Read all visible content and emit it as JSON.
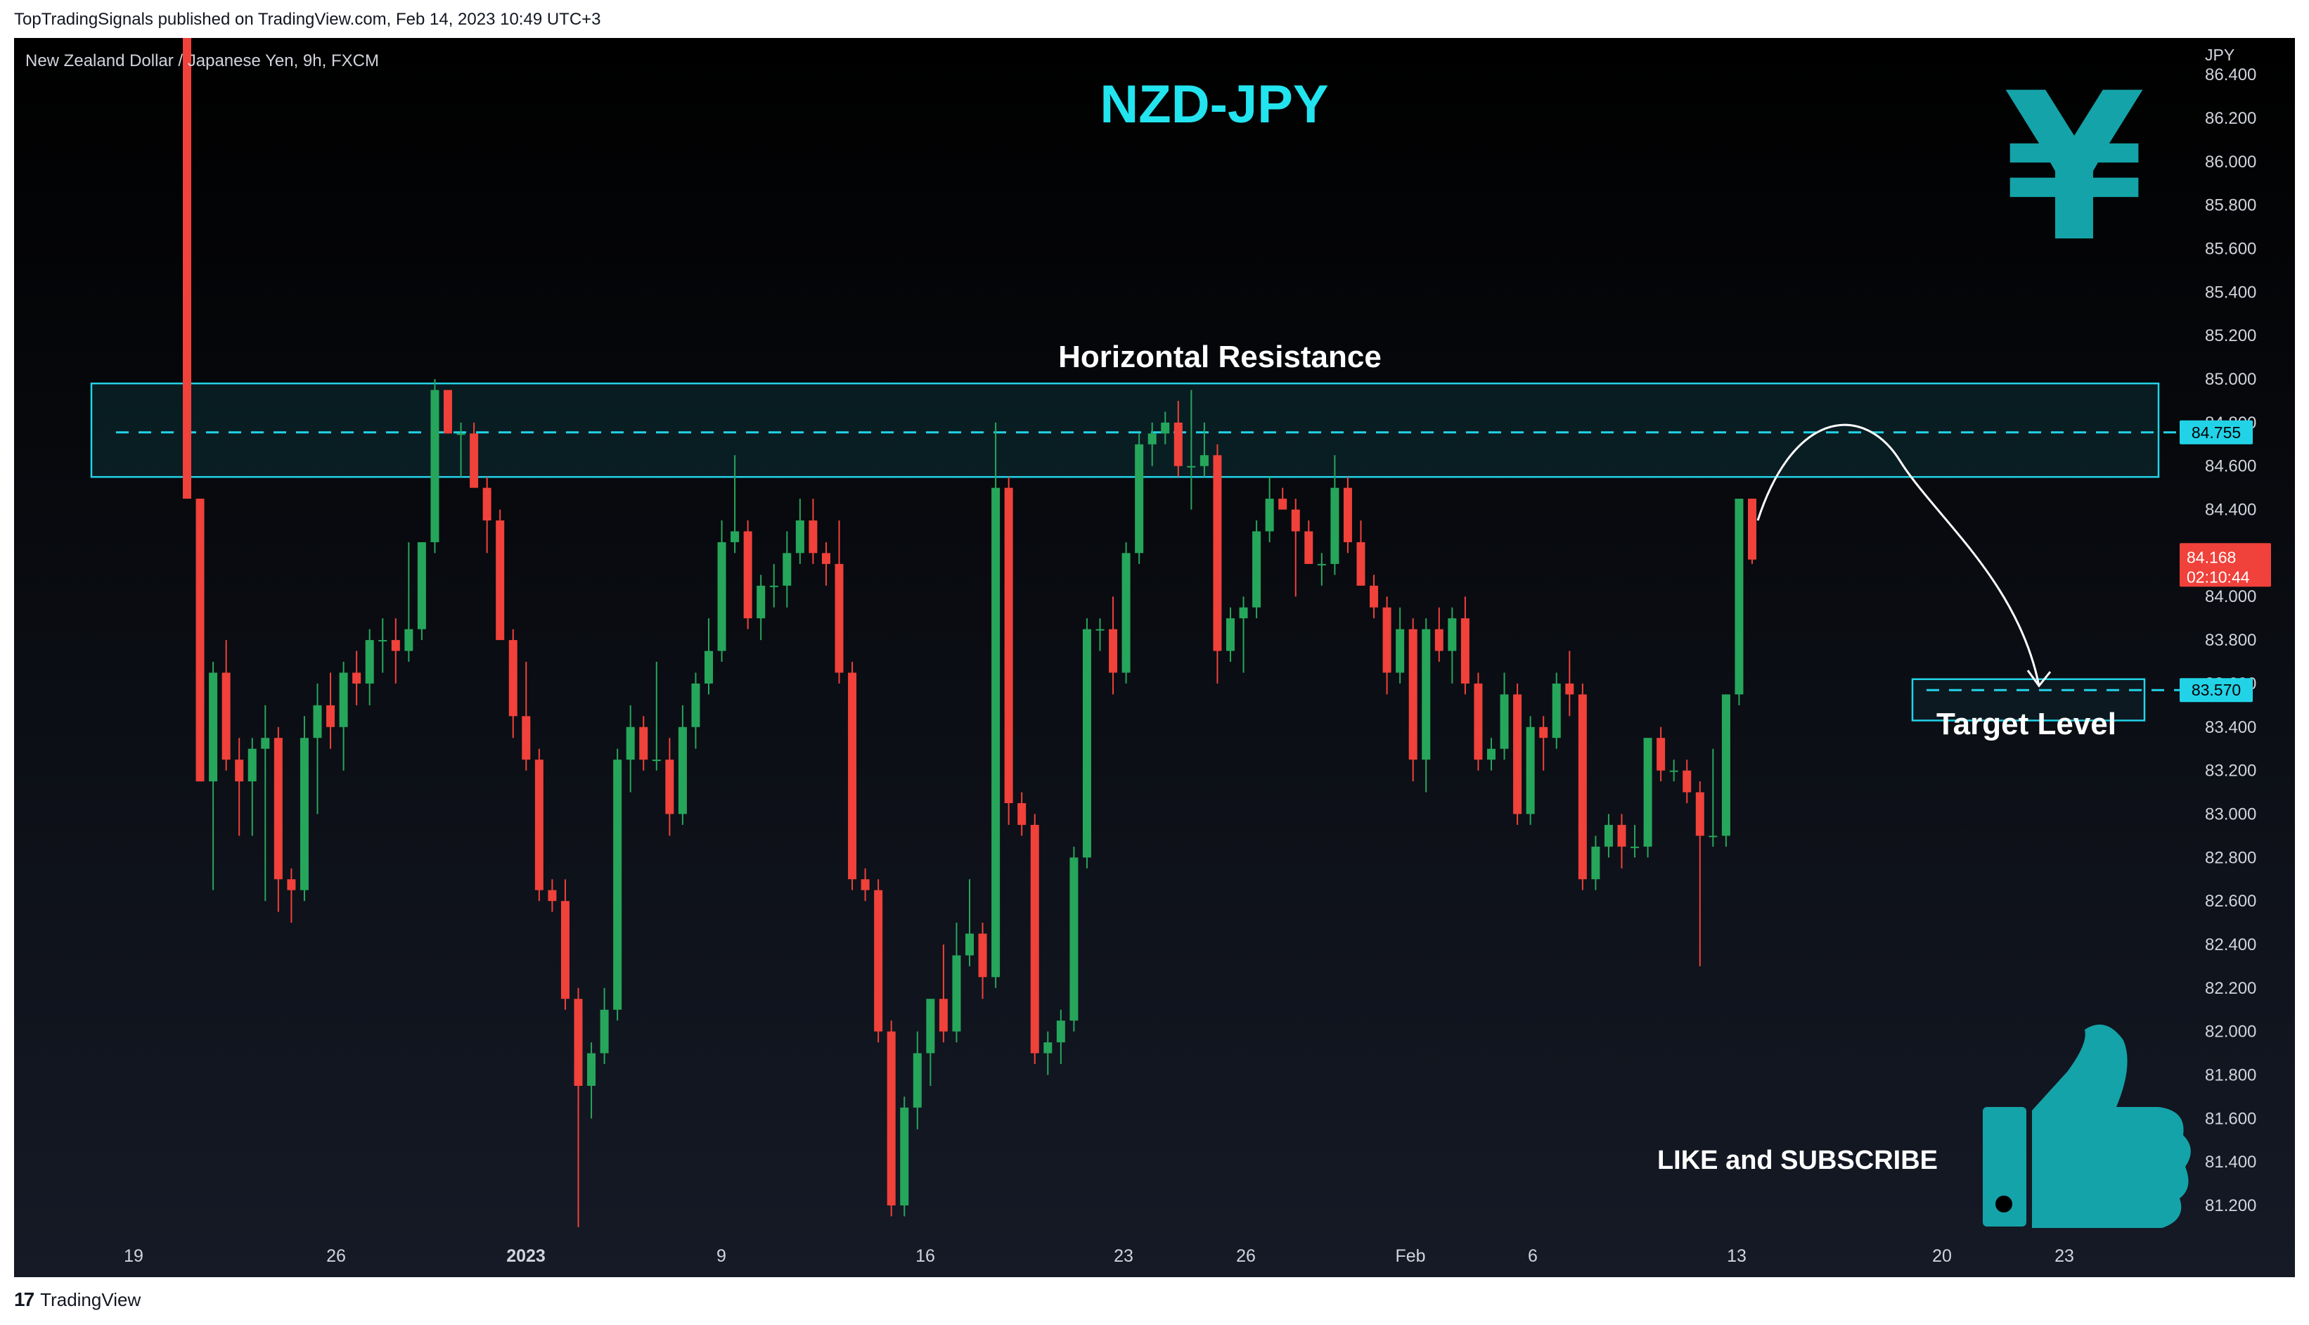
{
  "header": {
    "published_text": "TopTradingSignals published on TradingView.com, Feb 14, 2023 10:49 UTC+3"
  },
  "footer": {
    "brand": "TradingView",
    "logo_glyph": "17"
  },
  "chart": {
    "symbol_info": "New Zealand Dollar / Japanese Yen, 9h, FXCM",
    "title": "NZD-JPY",
    "currency_label": "JPY",
    "resistance_label": "Horizontal Resistance",
    "target_label": "Target Level",
    "cta_label": "LIKE and SUBSCRIBE",
    "resistance_badge": "84.755",
    "target_badge": "83.570",
    "last_price_badge": "84.168",
    "countdown_badge": "02:10:44",
    "yen_symbol": "¥",
    "colors": {
      "up": "#26a65b",
      "down": "#f0413a",
      "accent": "#22d3e8",
      "background_top": "#000000",
      "background_bottom": "#151a26"
    }
  },
  "chart_data": {
    "type": "candlestick",
    "title": "NZD-JPY",
    "ylabel": "JPY",
    "ylim": [
      81.05,
      86.4
    ],
    "y_ticks": [
      "86.400",
      "86.200",
      "86.000",
      "85.800",
      "85.600",
      "85.400",
      "85.200",
      "85.000",
      "84.800",
      "84.600",
      "84.400",
      "84.000",
      "83.800",
      "83.600",
      "83.400",
      "83.200",
      "83.000",
      "82.800",
      "82.600",
      "82.400",
      "82.200",
      "82.000",
      "81.800",
      "81.600",
      "81.400",
      "81.200"
    ],
    "x_ticks": [
      "19",
      "26",
      "2023",
      "9",
      "16",
      "23",
      "26",
      "Feb",
      "6",
      "13",
      "20",
      "23"
    ],
    "resistance_zone": [
      84.55,
      84.98
    ],
    "resistance_level": 84.755,
    "target_level": 83.57,
    "target_zone": [
      83.43,
      83.62
    ],
    "last_price": 84.168,
    "candles": [
      {
        "o": 86.8,
        "h": 86.8,
        "l": 84.45,
        "c": 84.45
      },
      {
        "o": 84.45,
        "h": 84.45,
        "l": 83.15,
        "c": 83.15
      },
      {
        "o": 83.15,
        "h": 83.7,
        "l": 82.65,
        "c": 83.65
      },
      {
        "o": 83.65,
        "h": 83.8,
        "l": 83.2,
        "c": 83.25
      },
      {
        "o": 83.25,
        "h": 83.35,
        "l": 82.9,
        "c": 83.15
      },
      {
        "o": 83.15,
        "h": 83.35,
        "l": 82.9,
        "c": 83.3
      },
      {
        "o": 83.3,
        "h": 83.5,
        "l": 82.6,
        "c": 83.35
      },
      {
        "o": 83.35,
        "h": 83.4,
        "l": 82.55,
        "c": 82.7
      },
      {
        "o": 82.7,
        "h": 82.75,
        "l": 82.5,
        "c": 82.65
      },
      {
        "o": 82.65,
        "h": 83.45,
        "l": 82.6,
        "c": 83.35
      },
      {
        "o": 83.35,
        "h": 83.6,
        "l": 83.0,
        "c": 83.5
      },
      {
        "o": 83.5,
        "h": 83.65,
        "l": 83.3,
        "c": 83.4
      },
      {
        "o": 83.4,
        "h": 83.7,
        "l": 83.2,
        "c": 83.65
      },
      {
        "o": 83.65,
        "h": 83.75,
        "l": 83.5,
        "c": 83.6
      },
      {
        "o": 83.6,
        "h": 83.85,
        "l": 83.5,
        "c": 83.8
      },
      {
        "o": 83.8,
        "h": 83.9,
        "l": 83.65,
        "c": 83.8
      },
      {
        "o": 83.8,
        "h": 83.9,
        "l": 83.6,
        "c": 83.75
      },
      {
        "o": 83.75,
        "h": 84.25,
        "l": 83.7,
        "c": 83.85
      },
      {
        "o": 83.85,
        "h": 84.25,
        "l": 83.8,
        "c": 84.25
      },
      {
        "o": 84.25,
        "h": 85.0,
        "l": 84.2,
        "c": 84.95
      },
      {
        "o": 84.95,
        "h": 84.95,
        "l": 84.75,
        "c": 84.75
      },
      {
        "o": 84.75,
        "h": 84.8,
        "l": 84.55,
        "c": 84.75
      },
      {
        "o": 84.75,
        "h": 84.8,
        "l": 84.5,
        "c": 84.5
      },
      {
        "o": 84.5,
        "h": 84.55,
        "l": 84.2,
        "c": 84.35
      },
      {
        "o": 84.35,
        "h": 84.4,
        "l": 83.8,
        "c": 83.8
      },
      {
        "o": 83.8,
        "h": 83.85,
        "l": 83.35,
        "c": 83.45
      },
      {
        "o": 83.45,
        "h": 83.7,
        "l": 83.2,
        "c": 83.25
      },
      {
        "o": 83.25,
        "h": 83.3,
        "l": 82.6,
        "c": 82.65
      },
      {
        "o": 82.65,
        "h": 82.7,
        "l": 82.55,
        "c": 82.6
      },
      {
        "o": 82.6,
        "h": 82.7,
        "l": 82.1,
        "c": 82.15
      },
      {
        "o": 82.15,
        "h": 82.2,
        "l": 81.1,
        "c": 81.75
      },
      {
        "o": 81.75,
        "h": 81.95,
        "l": 81.6,
        "c": 81.9
      },
      {
        "o": 81.9,
        "h": 82.2,
        "l": 81.85,
        "c": 82.1
      },
      {
        "o": 82.1,
        "h": 83.3,
        "l": 82.05,
        "c": 83.25
      },
      {
        "o": 83.25,
        "h": 83.5,
        "l": 83.1,
        "c": 83.4
      },
      {
        "o": 83.4,
        "h": 83.45,
        "l": 83.2,
        "c": 83.25
      },
      {
        "o": 83.25,
        "h": 83.7,
        "l": 83.2,
        "c": 83.25
      },
      {
        "o": 83.25,
        "h": 83.35,
        "l": 82.9,
        "c": 83.0
      },
      {
        "o": 83.0,
        "h": 83.5,
        "l": 82.95,
        "c": 83.4
      },
      {
        "o": 83.4,
        "h": 83.65,
        "l": 83.3,
        "c": 83.6
      },
      {
        "o": 83.6,
        "h": 83.9,
        "l": 83.55,
        "c": 83.75
      },
      {
        "o": 83.75,
        "h": 84.35,
        "l": 83.7,
        "c": 84.25
      },
      {
        "o": 84.25,
        "h": 84.65,
        "l": 84.2,
        "c": 84.3
      },
      {
        "o": 84.3,
        "h": 84.35,
        "l": 83.85,
        "c": 83.9
      },
      {
        "o": 83.9,
        "h": 84.1,
        "l": 83.8,
        "c": 84.05
      },
      {
        "o": 84.05,
        "h": 84.15,
        "l": 83.95,
        "c": 84.05
      },
      {
        "o": 84.05,
        "h": 84.3,
        "l": 83.95,
        "c": 84.2
      },
      {
        "o": 84.2,
        "h": 84.45,
        "l": 84.15,
        "c": 84.35
      },
      {
        "o": 84.35,
        "h": 84.45,
        "l": 84.15,
        "c": 84.2
      },
      {
        "o": 84.2,
        "h": 84.25,
        "l": 84.05,
        "c": 84.15
      },
      {
        "o": 84.15,
        "h": 84.35,
        "l": 83.6,
        "c": 83.65
      },
      {
        "o": 83.65,
        "h": 83.7,
        "l": 82.65,
        "c": 82.7
      },
      {
        "o": 82.7,
        "h": 82.75,
        "l": 82.6,
        "c": 82.65
      },
      {
        "o": 82.65,
        "h": 82.7,
        "l": 81.95,
        "c": 82.0
      },
      {
        "o": 82.0,
        "h": 82.05,
        "l": 81.15,
        "c": 81.2
      },
      {
        "o": 81.2,
        "h": 81.7,
        "l": 81.15,
        "c": 81.65
      },
      {
        "o": 81.65,
        "h": 82.0,
        "l": 81.55,
        "c": 81.9
      },
      {
        "o": 81.9,
        "h": 82.15,
        "l": 81.75,
        "c": 82.15
      },
      {
        "o": 82.15,
        "h": 82.4,
        "l": 81.95,
        "c": 82.0
      },
      {
        "o": 82.0,
        "h": 82.5,
        "l": 81.95,
        "c": 82.35
      },
      {
        "o": 82.35,
        "h": 82.7,
        "l": 82.3,
        "c": 82.45
      },
      {
        "o": 82.45,
        "h": 82.5,
        "l": 82.15,
        "c": 82.25
      },
      {
        "o": 82.25,
        "h": 84.8,
        "l": 82.2,
        "c": 84.5
      },
      {
        "o": 84.5,
        "h": 84.55,
        "l": 82.95,
        "c": 83.05
      },
      {
        "o": 83.05,
        "h": 83.1,
        "l": 82.9,
        "c": 82.95
      },
      {
        "o": 82.95,
        "h": 83.0,
        "l": 81.85,
        "c": 81.9
      },
      {
        "o": 81.9,
        "h": 82.0,
        "l": 81.8,
        "c": 81.95
      },
      {
        "o": 81.95,
        "h": 82.1,
        "l": 81.85,
        "c": 82.05
      },
      {
        "o": 82.05,
        "h": 82.85,
        "l": 82.0,
        "c": 82.8
      },
      {
        "o": 82.8,
        "h": 83.9,
        "l": 82.75,
        "c": 83.85
      },
      {
        "o": 83.85,
        "h": 83.9,
        "l": 83.75,
        "c": 83.85
      },
      {
        "o": 83.85,
        "h": 84.0,
        "l": 83.55,
        "c": 83.65
      },
      {
        "o": 83.65,
        "h": 84.25,
        "l": 83.6,
        "c": 84.2
      },
      {
        "o": 84.2,
        "h": 84.75,
        "l": 84.15,
        "c": 84.7
      },
      {
        "o": 84.7,
        "h": 84.8,
        "l": 84.6,
        "c": 84.75
      },
      {
        "o": 84.75,
        "h": 84.85,
        "l": 84.7,
        "c": 84.8
      },
      {
        "o": 84.8,
        "h": 84.9,
        "l": 84.55,
        "c": 84.6
      },
      {
        "o": 84.6,
        "h": 84.95,
        "l": 84.4,
        "c": 84.6
      },
      {
        "o": 84.6,
        "h": 84.8,
        "l": 84.55,
        "c": 84.65
      },
      {
        "o": 84.65,
        "h": 84.7,
        "l": 83.6,
        "c": 83.75
      },
      {
        "o": 83.75,
        "h": 83.95,
        "l": 83.7,
        "c": 83.9
      },
      {
        "o": 83.9,
        "h": 84.0,
        "l": 83.65,
        "c": 83.95
      },
      {
        "o": 83.95,
        "h": 84.35,
        "l": 83.9,
        "c": 84.3
      },
      {
        "o": 84.3,
        "h": 84.55,
        "l": 84.25,
        "c": 84.45
      },
      {
        "o": 84.45,
        "h": 84.5,
        "l": 84.4,
        "c": 84.4
      },
      {
        "o": 84.4,
        "h": 84.45,
        "l": 84.0,
        "c": 84.3
      },
      {
        "o": 84.3,
        "h": 84.35,
        "l": 84.15,
        "c": 84.15
      },
      {
        "o": 84.15,
        "h": 84.2,
        "l": 84.05,
        "c": 84.15
      },
      {
        "o": 84.15,
        "h": 84.65,
        "l": 84.1,
        "c": 84.5
      },
      {
        "o": 84.5,
        "h": 84.55,
        "l": 84.2,
        "c": 84.25
      },
      {
        "o": 84.25,
        "h": 84.35,
        "l": 84.05,
        "c": 84.05
      },
      {
        "o": 84.05,
        "h": 84.1,
        "l": 83.9,
        "c": 83.95
      },
      {
        "o": 83.95,
        "h": 84.0,
        "l": 83.55,
        "c": 83.65
      },
      {
        "o": 83.65,
        "h": 83.95,
        "l": 83.6,
        "c": 83.85
      },
      {
        "o": 83.85,
        "h": 83.9,
        "l": 83.15,
        "c": 83.25
      },
      {
        "o": 83.25,
        "h": 83.9,
        "l": 83.1,
        "c": 83.85
      },
      {
        "o": 83.85,
        "h": 83.95,
        "l": 83.7,
        "c": 83.75
      },
      {
        "o": 83.75,
        "h": 83.95,
        "l": 83.6,
        "c": 83.9
      },
      {
        "o": 83.9,
        "h": 84.0,
        "l": 83.55,
        "c": 83.6
      },
      {
        "o": 83.6,
        "h": 83.65,
        "l": 83.2,
        "c": 83.25
      },
      {
        "o": 83.25,
        "h": 83.35,
        "l": 83.2,
        "c": 83.3
      },
      {
        "o": 83.3,
        "h": 83.65,
        "l": 83.25,
        "c": 83.55
      },
      {
        "o": 83.55,
        "h": 83.6,
        "l": 82.95,
        "c": 83.0
      },
      {
        "o": 83.0,
        "h": 83.45,
        "l": 82.95,
        "c": 83.4
      },
      {
        "o": 83.4,
        "h": 83.45,
        "l": 83.2,
        "c": 83.35
      },
      {
        "o": 83.35,
        "h": 83.65,
        "l": 83.3,
        "c": 83.6
      },
      {
        "o": 83.6,
        "h": 83.75,
        "l": 83.45,
        "c": 83.55
      },
      {
        "o": 83.55,
        "h": 83.6,
        "l": 82.65,
        "c": 82.7
      },
      {
        "o": 82.7,
        "h": 82.9,
        "l": 82.65,
        "c": 82.85
      },
      {
        "o": 82.85,
        "h": 83.0,
        "l": 82.8,
        "c": 82.95
      },
      {
        "o": 82.95,
        "h": 83.0,
        "l": 82.75,
        "c": 82.85
      },
      {
        "o": 82.85,
        "h": 82.95,
        "l": 82.8,
        "c": 82.85
      },
      {
        "o": 82.85,
        "h": 83.35,
        "l": 82.8,
        "c": 83.35
      },
      {
        "o": 83.35,
        "h": 83.4,
        "l": 83.15,
        "c": 83.2
      },
      {
        "o": 83.2,
        "h": 83.25,
        "l": 83.15,
        "c": 83.2
      },
      {
        "o": 83.2,
        "h": 83.25,
        "l": 83.05,
        "c": 83.1
      },
      {
        "o": 83.1,
        "h": 83.15,
        "l": 82.3,
        "c": 82.9
      },
      {
        "o": 82.9,
        "h": 83.3,
        "l": 82.85,
        "c": 82.9
      },
      {
        "o": 82.9,
        "h": 83.55,
        "l": 82.85,
        "c": 83.55
      },
      {
        "o": 83.55,
        "h": 84.45,
        "l": 83.5,
        "c": 84.45
      },
      {
        "o": 84.45,
        "h": 84.45,
        "l": 84.15,
        "c": 84.17
      }
    ]
  }
}
